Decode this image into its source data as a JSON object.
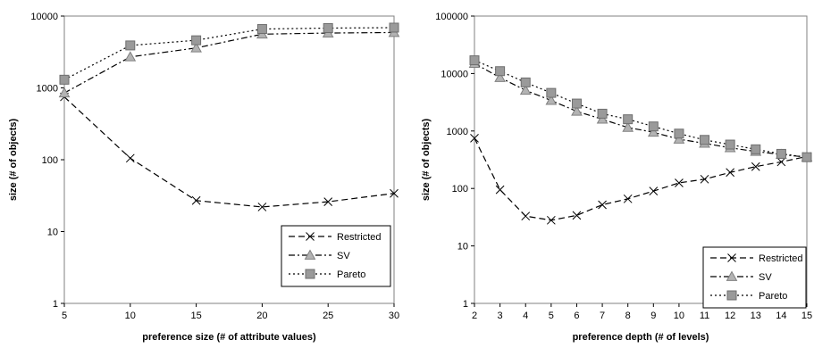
{
  "chart_data": [
    {
      "type": "line",
      "scale": "log",
      "x": [
        5,
        10,
        15,
        20,
        25,
        30
      ],
      "xlim": [
        5,
        30
      ],
      "ylim": [
        1,
        10000
      ],
      "xticks": [
        "5",
        "10",
        "15",
        "20",
        "25",
        "30"
      ],
      "yticks": [
        "1",
        "10",
        "100",
        "1000",
        "10000"
      ],
      "xlabel": "preference size (# of attribute values)",
      "ylabel": "size (# of objects)",
      "legend_position": "bottom-right",
      "series": [
        {
          "name": "Restricted",
          "marker": "x",
          "dash": "dashed",
          "values": [
            750,
            105,
            27,
            22,
            26,
            34
          ]
        },
        {
          "name": "SV",
          "marker": "triangle",
          "dash": "dash-dot",
          "values": [
            850,
            2700,
            3600,
            5600,
            5800,
            5900
          ]
        },
        {
          "name": "Pareto",
          "marker": "square",
          "dash": "dotted",
          "values": [
            1300,
            3900,
            4600,
            6600,
            6800,
            6900
          ]
        }
      ]
    },
    {
      "type": "line",
      "scale": "log",
      "x": [
        2,
        3,
        4,
        5,
        6,
        7,
        8,
        9,
        10,
        11,
        12,
        13,
        14,
        15
      ],
      "xlim": [
        2,
        15
      ],
      "ylim": [
        1,
        100000
      ],
      "xticks": [
        "2",
        "3",
        "4",
        "5",
        "6",
        "7",
        "8",
        "9",
        "10",
        "11",
        "12",
        "13",
        "14",
        "15"
      ],
      "yticks": [
        "1",
        "10",
        "100",
        "1000",
        "10000",
        "100000"
      ],
      "xlabel": "preference depth (# of levels)",
      "ylabel": "size (# of objects)",
      "legend_position": "bottom-right",
      "series": [
        {
          "name": "Restricted",
          "marker": "x",
          "dash": "dashed",
          "values": [
            750,
            95,
            33,
            28,
            34,
            52,
            66,
            90,
            125,
            145,
            190,
            240,
            290,
            360
          ]
        },
        {
          "name": "SV",
          "marker": "triangle",
          "dash": "dash-dot",
          "values": [
            15000,
            8500,
            5100,
            3400,
            2200,
            1600,
            1150,
            950,
            720,
            610,
            510,
            440,
            390,
            350
          ]
        },
        {
          "name": "Pareto",
          "marker": "square",
          "dash": "dotted",
          "values": [
            17000,
            11000,
            7000,
            4600,
            3000,
            2000,
            1600,
            1200,
            900,
            700,
            580,
            480,
            400,
            350
          ]
        }
      ]
    }
  ]
}
